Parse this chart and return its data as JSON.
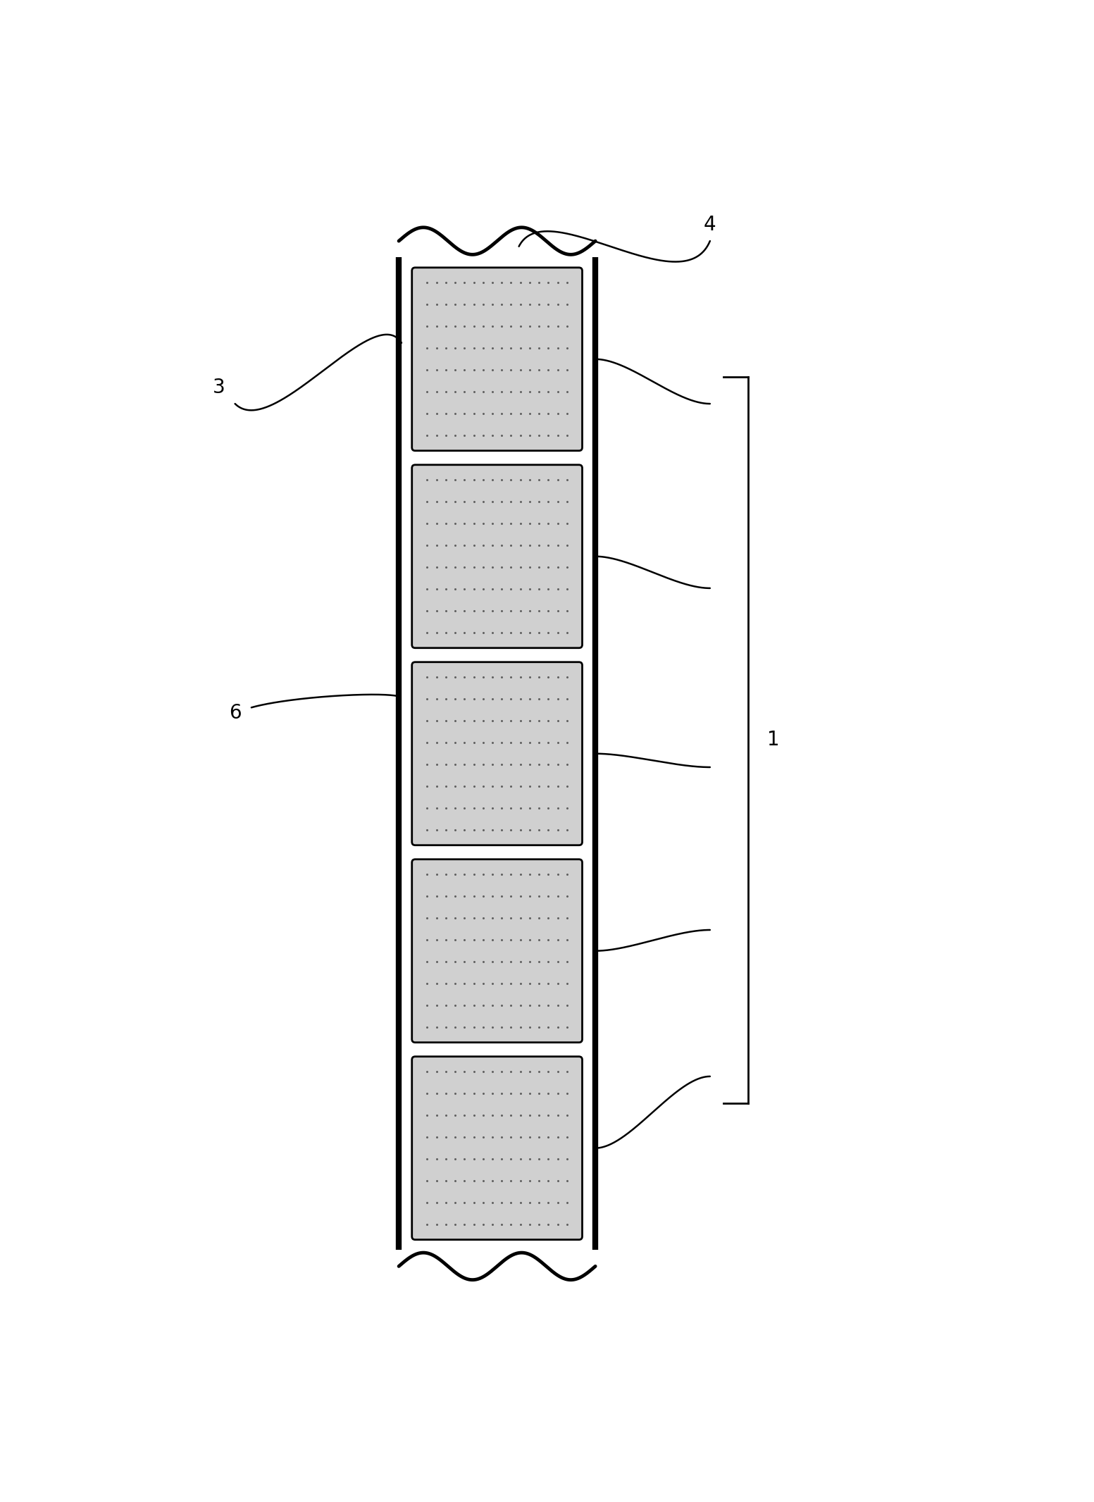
{
  "fig_width": 15.53,
  "fig_height": 21.32,
  "bg_color": "#ffffff",
  "strip_lw": 3.5,
  "num_electrodes": 5,
  "electrode_color": "#d0d0d0",
  "electrode_dot_color": "#606060",
  "label_3": "3",
  "label_4": "4",
  "label_6": "6",
  "label_1": "1",
  "font_size_labels": 20,
  "dot_cols": 16,
  "dot_rows": 8
}
